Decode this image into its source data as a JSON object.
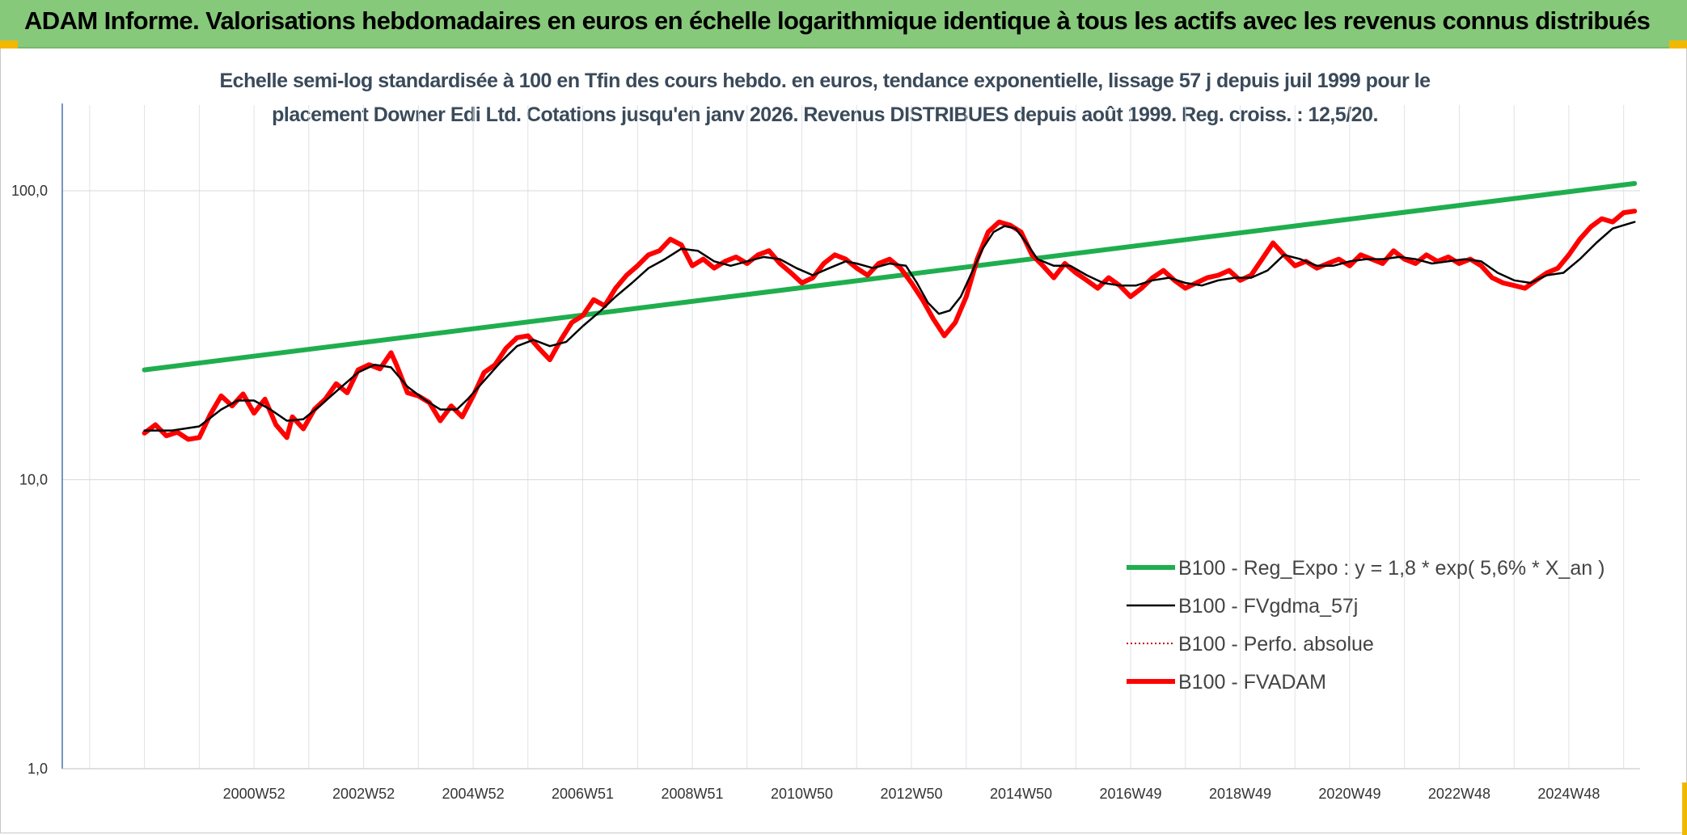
{
  "header": {
    "title": "ADAM Informe. Valorisations hebdomadaires en euros en échelle logarithmique identique à tous les actifs avec les revenus connus distribués"
  },
  "chart_data": {
    "type": "line",
    "title_line1": "Echelle semi-log standardisée à 100 en Tfin des cours hebdo. en euros, tendance exponentielle, lissage 57 j depuis juil 1999 pour le",
    "title_line2": "placement Downer Edi Ltd. Cotations jusqu'en janv 2026. Revenus DISTRIBUES depuis août 1999. Reg. croiss. : 12,5/20.",
    "y_scale": "log",
    "ylim": [
      1,
      100
    ],
    "y_ticks": [
      {
        "value": 100,
        "label": "100,0"
      },
      {
        "value": 10,
        "label": "10,0"
      },
      {
        "value": 1,
        "label": "1,0"
      }
    ],
    "x_range": [
      1997.5,
      2026.3
    ],
    "x_ticks": [
      {
        "value": 2001.0,
        "label": "2000W52"
      },
      {
        "value": 2003.0,
        "label": "2002W52"
      },
      {
        "value": 2005.0,
        "label": "2004W52"
      },
      {
        "value": 2007.0,
        "label": "2006W51"
      },
      {
        "value": 2009.0,
        "label": "2008W51"
      },
      {
        "value": 2011.0,
        "label": "2010W50"
      },
      {
        "value": 2013.0,
        "label": "2012W50"
      },
      {
        "value": 2015.0,
        "label": "2014W50"
      },
      {
        "value": 2017.0,
        "label": "2016W49"
      },
      {
        "value": 2019.0,
        "label": "2018W49"
      },
      {
        "value": 2021.0,
        "label": "2020W49"
      },
      {
        "value": 2023.0,
        "label": "2022W48"
      },
      {
        "value": 2025.0,
        "label": "2024W48"
      }
    ],
    "grid": true,
    "legend_position": "bottom-right",
    "series": [
      {
        "name": "B100 - Reg_Expo : y = 1,8 * exp( 5,6% *  X_an )",
        "color": "#1fae4e",
        "style": "thick",
        "points": [
          [
            1999.0,
            24.0
          ],
          [
            2026.2,
            106.0
          ]
        ]
      },
      {
        "name": "B100 - FVgdma_57j",
        "color": "#000000",
        "style": "thin",
        "points": [
          [
            1999.0,
            14.8
          ],
          [
            1999.5,
            14.8
          ],
          [
            2000.0,
            15.3
          ],
          [
            2000.4,
            17.5
          ],
          [
            2000.7,
            18.8
          ],
          [
            2001.0,
            18.8
          ],
          [
            2001.3,
            17.5
          ],
          [
            2001.6,
            16.0
          ],
          [
            2001.9,
            16.2
          ],
          [
            2002.2,
            18.0
          ],
          [
            2002.6,
            21.0
          ],
          [
            2002.9,
            23.5
          ],
          [
            2003.2,
            25.0
          ],
          [
            2003.5,
            24.5
          ],
          [
            2003.8,
            21.0
          ],
          [
            2004.1,
            19.0
          ],
          [
            2004.4,
            17.5
          ],
          [
            2004.7,
            17.5
          ],
          [
            2004.9,
            19.0
          ],
          [
            2005.2,
            22.0
          ],
          [
            2005.5,
            25.5
          ],
          [
            2005.8,
            29.0
          ],
          [
            2006.1,
            30.5
          ],
          [
            2006.4,
            29.0
          ],
          [
            2006.7,
            30.0
          ],
          [
            2007.0,
            34.0
          ],
          [
            2007.3,
            38.0
          ],
          [
            2007.6,
            43.0
          ],
          [
            2007.9,
            48.0
          ],
          [
            2008.2,
            54.0
          ],
          [
            2008.5,
            58.0
          ],
          [
            2008.8,
            63.0
          ],
          [
            2009.1,
            62.0
          ],
          [
            2009.4,
            57.0
          ],
          [
            2009.7,
            55.0
          ],
          [
            2010.0,
            57.0
          ],
          [
            2010.3,
            59.0
          ],
          [
            2010.6,
            58.0
          ],
          [
            2010.9,
            54.0
          ],
          [
            2011.2,
            51.0
          ],
          [
            2011.5,
            54.0
          ],
          [
            2011.8,
            57.0
          ],
          [
            2012.0,
            56.0
          ],
          [
            2012.3,
            54.0
          ],
          [
            2012.6,
            56.0
          ],
          [
            2012.9,
            55.0
          ],
          [
            2013.1,
            48.0
          ],
          [
            2013.3,
            41.0
          ],
          [
            2013.5,
            37.5
          ],
          [
            2013.7,
            38.5
          ],
          [
            2013.9,
            43.0
          ],
          [
            2014.1,
            52.0
          ],
          [
            2014.3,
            63.0
          ],
          [
            2014.5,
            72.0
          ],
          [
            2014.7,
            75.5
          ],
          [
            2014.9,
            74.0
          ],
          [
            2015.1,
            66.0
          ],
          [
            2015.3,
            58.0
          ],
          [
            2015.6,
            55.0
          ],
          [
            2015.9,
            55.0
          ],
          [
            2016.2,
            51.0
          ],
          [
            2016.5,
            48.0
          ],
          [
            2016.8,
            47.0
          ],
          [
            2017.1,
            47.0
          ],
          [
            2017.4,
            49.0
          ],
          [
            2017.7,
            50.0
          ],
          [
            2018.0,
            48.0
          ],
          [
            2018.3,
            47.0
          ],
          [
            2018.6,
            49.0
          ],
          [
            2018.9,
            50.0
          ],
          [
            2019.2,
            50.0
          ],
          [
            2019.5,
            53.0
          ],
          [
            2019.8,
            60.0
          ],
          [
            2020.1,
            58.0
          ],
          [
            2020.4,
            55.0
          ],
          [
            2020.7,
            55.0
          ],
          [
            2021.0,
            57.0
          ],
          [
            2021.3,
            58.0
          ],
          [
            2021.6,
            58.0
          ],
          [
            2021.9,
            59.0
          ],
          [
            2022.2,
            58.0
          ],
          [
            2022.5,
            56.0
          ],
          [
            2022.8,
            57.0
          ],
          [
            2023.1,
            58.0
          ],
          [
            2023.4,
            57.0
          ],
          [
            2023.7,
            52.0
          ],
          [
            2024.0,
            49.0
          ],
          [
            2024.3,
            48.0
          ],
          [
            2024.6,
            51.0
          ],
          [
            2024.9,
            52.0
          ],
          [
            2025.2,
            58.0
          ],
          [
            2025.5,
            66.0
          ],
          [
            2025.8,
            74.0
          ],
          [
            2026.2,
            78.0
          ]
        ]
      },
      {
        "name": "B100 - Perfo. absolue",
        "color": "#c00000",
        "style": "dotted",
        "points": []
      },
      {
        "name": "B100 - FVADAM",
        "color": "#ff0000",
        "style": "thick",
        "points": [
          [
            1999.0,
            14.5
          ],
          [
            1999.2,
            15.5
          ],
          [
            1999.4,
            14.2
          ],
          [
            1999.6,
            14.6
          ],
          [
            1999.8,
            13.8
          ],
          [
            2000.0,
            14.0
          ],
          [
            2000.2,
            16.8
          ],
          [
            2000.4,
            19.5
          ],
          [
            2000.6,
            18.0
          ],
          [
            2000.8,
            19.8
          ],
          [
            2001.0,
            17.0
          ],
          [
            2001.2,
            19.0
          ],
          [
            2001.4,
            15.5
          ],
          [
            2001.6,
            14.0
          ],
          [
            2001.7,
            16.5
          ],
          [
            2001.9,
            15.0
          ],
          [
            2002.1,
            17.5
          ],
          [
            2002.3,
            19.0
          ],
          [
            2002.5,
            21.5
          ],
          [
            2002.7,
            20.0
          ],
          [
            2002.9,
            24.0
          ],
          [
            2003.1,
            25.0
          ],
          [
            2003.3,
            24.2
          ],
          [
            2003.5,
            27.5
          ],
          [
            2003.6,
            25.0
          ],
          [
            2003.8,
            20.0
          ],
          [
            2004.0,
            19.5
          ],
          [
            2004.2,
            18.5
          ],
          [
            2004.4,
            16.0
          ],
          [
            2004.6,
            18.0
          ],
          [
            2004.8,
            16.5
          ],
          [
            2005.0,
            19.5
          ],
          [
            2005.2,
            23.5
          ],
          [
            2005.4,
            25.0
          ],
          [
            2005.6,
            28.5
          ],
          [
            2005.8,
            31.0
          ],
          [
            2006.0,
            31.5
          ],
          [
            2006.2,
            28.5
          ],
          [
            2006.4,
            26.0
          ],
          [
            2006.6,
            30.5
          ],
          [
            2006.8,
            35.0
          ],
          [
            2007.0,
            37.0
          ],
          [
            2007.2,
            42.0
          ],
          [
            2007.4,
            40.0
          ],
          [
            2007.6,
            46.0
          ],
          [
            2007.8,
            51.0
          ],
          [
            2008.0,
            55.0
          ],
          [
            2008.2,
            60.0
          ],
          [
            2008.4,
            62.0
          ],
          [
            2008.6,
            68.0
          ],
          [
            2008.8,
            65.0
          ],
          [
            2009.0,
            55.0
          ],
          [
            2009.2,
            58.0
          ],
          [
            2009.4,
            54.0
          ],
          [
            2009.6,
            57.0
          ],
          [
            2009.8,
            59.0
          ],
          [
            2010.0,
            56.0
          ],
          [
            2010.2,
            60.0
          ],
          [
            2010.4,
            62.0
          ],
          [
            2010.6,
            56.0
          ],
          [
            2010.8,
            52.0
          ],
          [
            2011.0,
            48.0
          ],
          [
            2011.2,
            50.0
          ],
          [
            2011.4,
            56.0
          ],
          [
            2011.6,
            60.0
          ],
          [
            2011.8,
            58.0
          ],
          [
            2012.0,
            54.0
          ],
          [
            2012.2,
            51.0
          ],
          [
            2012.4,
            56.0
          ],
          [
            2012.6,
            58.0
          ],
          [
            2012.8,
            54.0
          ],
          [
            2013.0,
            48.0
          ],
          [
            2013.2,
            42.0
          ],
          [
            2013.4,
            36.0
          ],
          [
            2013.6,
            31.5
          ],
          [
            2013.8,
            35.0
          ],
          [
            2014.0,
            43.0
          ],
          [
            2014.2,
            58.0
          ],
          [
            2014.4,
            72.0
          ],
          [
            2014.6,
            78.0
          ],
          [
            2014.8,
            76.0
          ],
          [
            2015.0,
            72.0
          ],
          [
            2015.2,
            60.0
          ],
          [
            2015.4,
            55.0
          ],
          [
            2015.6,
            50.0
          ],
          [
            2015.8,
            56.0
          ],
          [
            2016.0,
            52.0
          ],
          [
            2016.2,
            49.0
          ],
          [
            2016.4,
            46.0
          ],
          [
            2016.6,
            50.0
          ],
          [
            2016.8,
            47.0
          ],
          [
            2017.0,
            43.0
          ],
          [
            2017.2,
            46.0
          ],
          [
            2017.4,
            50.0
          ],
          [
            2017.6,
            53.0
          ],
          [
            2017.8,
            49.0
          ],
          [
            2018.0,
            46.0
          ],
          [
            2018.2,
            48.0
          ],
          [
            2018.4,
            50.0
          ],
          [
            2018.6,
            51.0
          ],
          [
            2018.8,
            53.0
          ],
          [
            2019.0,
            49.0
          ],
          [
            2019.2,
            51.0
          ],
          [
            2019.4,
            58.0
          ],
          [
            2019.6,
            66.0
          ],
          [
            2019.8,
            60.0
          ],
          [
            2020.0,
            55.0
          ],
          [
            2020.2,
            57.0
          ],
          [
            2020.4,
            54.0
          ],
          [
            2020.6,
            56.0
          ],
          [
            2020.8,
            58.0
          ],
          [
            2021.0,
            55.0
          ],
          [
            2021.2,
            60.0
          ],
          [
            2021.4,
            58.0
          ],
          [
            2021.6,
            56.0
          ],
          [
            2021.8,
            62.0
          ],
          [
            2022.0,
            58.0
          ],
          [
            2022.2,
            56.0
          ],
          [
            2022.4,
            60.0
          ],
          [
            2022.6,
            57.0
          ],
          [
            2022.8,
            59.0
          ],
          [
            2023.0,
            56.0
          ],
          [
            2023.2,
            58.0
          ],
          [
            2023.4,
            55.0
          ],
          [
            2023.6,
            50.0
          ],
          [
            2023.8,
            48.0
          ],
          [
            2024.0,
            47.0
          ],
          [
            2024.2,
            46.0
          ],
          [
            2024.4,
            49.0
          ],
          [
            2024.6,
            52.0
          ],
          [
            2024.8,
            54.0
          ],
          [
            2025.0,
            60.0
          ],
          [
            2025.2,
            68.0
          ],
          [
            2025.4,
            75.0
          ],
          [
            2025.6,
            80.0
          ],
          [
            2025.8,
            78.0
          ],
          [
            2026.0,
            84.0
          ],
          [
            2026.2,
            85.0
          ]
        ]
      }
    ]
  }
}
